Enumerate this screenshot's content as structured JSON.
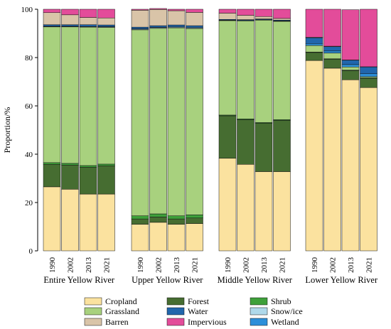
{
  "chart_data": {
    "type": "bar",
    "stacked": true,
    "ylabel": "Proportion/%",
    "ylim": [
      0,
      100
    ],
    "yticks": [
      0,
      20,
      40,
      60,
      80,
      100
    ],
    "grid": false,
    "legend_position": "bottom",
    "groups": [
      {
        "label": "Entire Yellow River",
        "years": [
          "1990",
          "2002",
          "2013",
          "2021"
        ]
      },
      {
        "label": "Upper Yellow River",
        "years": [
          "1990",
          "2002",
          "2013",
          "2021"
        ]
      },
      {
        "label": "Middle Yellow River",
        "years": [
          "1990",
          "2002",
          "2013",
          "2021"
        ]
      },
      {
        "label": "Lower Yellow River",
        "years": [
          "1990",
          "2002",
          "2013",
          "2021"
        ]
      }
    ],
    "series": [
      {
        "name": "Cropland",
        "color": "#fbe29f",
        "values": [
          [
            26.5,
            25.5,
            23.5,
            23.5
          ],
          [
            11.0,
            11.8,
            11.0,
            11.3
          ],
          [
            38.3,
            35.8,
            32.8,
            32.8
          ],
          [
            78.8,
            75.6,
            70.8,
            67.6
          ]
        ]
      },
      {
        "name": "Forest",
        "color": "#466d31",
        "values": [
          [
            9.3,
            10.0,
            11.1,
            11.7
          ],
          [
            2.2,
            2.2,
            2.2,
            2.3
          ],
          [
            17.6,
            18.5,
            20.0,
            21.2
          ],
          [
            3.3,
            3.7,
            3.8,
            3.8
          ]
        ]
      },
      {
        "name": "Shrub",
        "color": "#3ea03a",
        "values": [
          [
            0.7,
            0.7,
            0.7,
            0.7
          ],
          [
            1.3,
            1.3,
            1.3,
            1.3
          ],
          [
            0.3,
            0.3,
            0.3,
            0.3
          ],
          [
            0.2,
            0.2,
            0.2,
            0.2
          ]
        ]
      },
      {
        "name": "Grassland",
        "color": "#a8d17e",
        "values": [
          [
            56.2,
            56.5,
            57.3,
            56.6
          ],
          [
            77.0,
            76.8,
            77.8,
            77.1
          ],
          [
            39.1,
            40.6,
            42.4,
            40.7
          ],
          [
            2.7,
            2.4,
            1.3,
            0.5
          ]
        ]
      },
      {
        "name": "Snow/ice",
        "color": "#b0d9ea",
        "values": [
          [
            0.2,
            0.2,
            0.2,
            0.2
          ],
          [
            0.3,
            0.3,
            0.3,
            0.3
          ],
          [
            0.1,
            0.1,
            0.1,
            0.1
          ],
          [
            0.0,
            0.0,
            0.0,
            0.0
          ]
        ]
      },
      {
        "name": "Wetland",
        "color": "#2d8fd9",
        "values": [
          [
            0.1,
            0.1,
            0.1,
            0.1
          ],
          [
            0.1,
            0.1,
            0.1,
            0.1
          ],
          [
            0.1,
            0.1,
            0.1,
            0.1
          ],
          [
            0.8,
            0.8,
            1.0,
            1.2
          ]
        ]
      },
      {
        "name": "Water",
        "color": "#2166ac",
        "values": [
          [
            0.6,
            0.6,
            0.7,
            0.7
          ],
          [
            0.7,
            0.7,
            0.8,
            0.8
          ],
          [
            0.3,
            0.3,
            0.3,
            0.3
          ],
          [
            2.4,
            1.8,
            1.8,
            2.8
          ]
        ]
      },
      {
        "name": "Barren",
        "color": "#d9c4a8",
        "values": [
          [
            5.0,
            4.1,
            3.0,
            2.9
          ],
          [
            7.0,
            6.7,
            5.9,
            5.5
          ],
          [
            2.6,
            1.8,
            1.0,
            0.7
          ],
          [
            0.2,
            0.2,
            0.1,
            0.1
          ]
        ]
      },
      {
        "name": "Impervious",
        "color": "#e34c9a",
        "values": [
          [
            1.4,
            2.3,
            3.4,
            3.6
          ],
          [
            0.4,
            0.4,
            0.6,
            1.3
          ],
          [
            1.6,
            2.5,
            3.0,
            3.8
          ],
          [
            11.6,
            15.3,
            20.8,
            23.8
          ]
        ]
      }
    ],
    "legend": [
      {
        "name": "Cropland",
        "color": "#fbe29f"
      },
      {
        "name": "Forest",
        "color": "#466d31"
      },
      {
        "name": "Shrub",
        "color": "#3ea03a"
      },
      {
        "name": "Grassland",
        "color": "#a8d17e"
      },
      {
        "name": "Water",
        "color": "#2166ac"
      },
      {
        "name": "Snow/ice",
        "color": "#b0d9ea"
      },
      {
        "name": "Barren",
        "color": "#d9c4a8"
      },
      {
        "name": "Impervious",
        "color": "#e34c9a"
      },
      {
        "name": "Wetland",
        "color": "#2d8fd9"
      }
    ]
  }
}
